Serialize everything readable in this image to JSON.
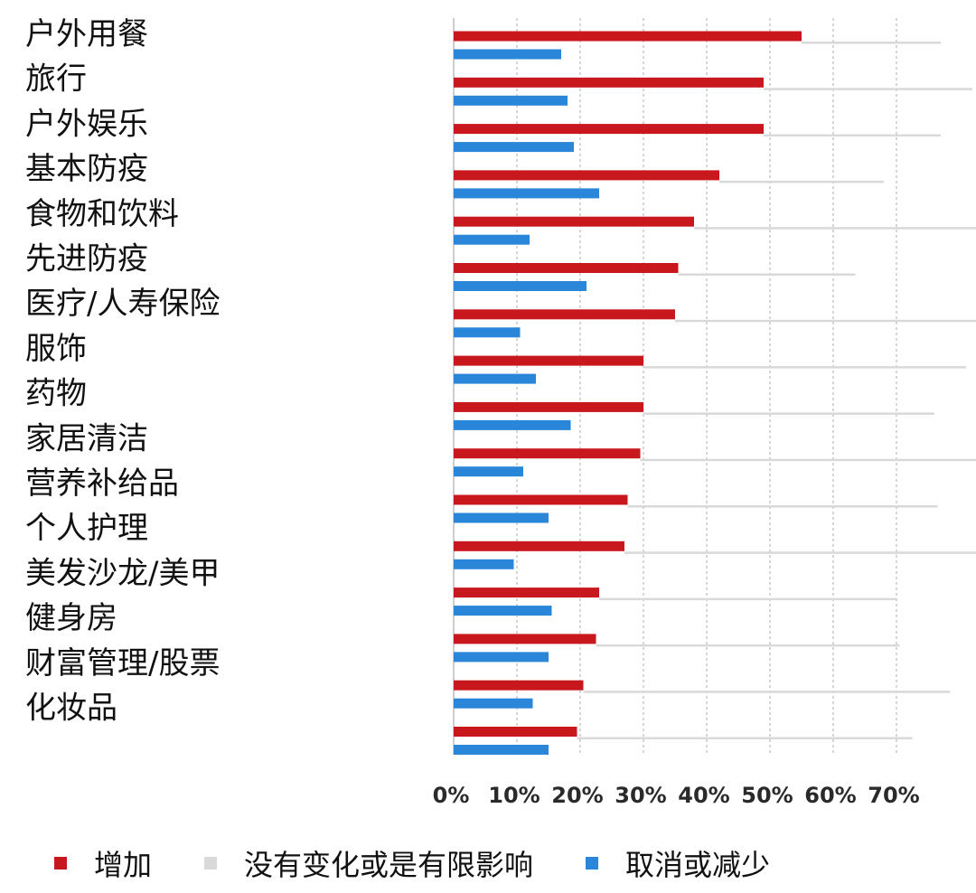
{
  "chart_data": {
    "type": "bar",
    "orientation": "horizontal",
    "categories": [
      "户外用餐",
      "旅行",
      "户外娱乐",
      "基本防疫",
      "食物和饮料",
      "先进防疫",
      "医疗/人寿保险",
      "服饰",
      "药物",
      "家居清洁",
      "营养补给品",
      "个人护理",
      "美发沙龙/美甲",
      "健身房",
      "财富管理/股票",
      "化妆品"
    ],
    "series": [
      {
        "name": "增加",
        "color": "#c8171d",
        "values": [
          55,
          49,
          49,
          42,
          38,
          35.5,
          35,
          30,
          30,
          29.5,
          27.5,
          27,
          23,
          22.5,
          20.5,
          19.5
        ]
      },
      {
        "name": "没有变化或是有限影响",
        "color": "#d9d9d9",
        "values": [
          22,
          33,
          28,
          26,
          47,
          28,
          48,
          51,
          46,
          56,
          49,
          61,
          47,
          48,
          58,
          53
        ]
      },
      {
        "name": "取消或减少",
        "color": "#2a86d9",
        "values": [
          17,
          18,
          19,
          23,
          12,
          21,
          10.5,
          13,
          18.5,
          11,
          15,
          9.5,
          15.5,
          15,
          12.5,
          15
        ]
      }
    ],
    "xlim": [
      0,
      70
    ],
    "xticks": [
      "0%",
      "10%",
      "20%",
      "30%",
      "40%",
      "50%",
      "60%",
      "70%"
    ],
    "grid": true,
    "legend_position": "bottom"
  }
}
